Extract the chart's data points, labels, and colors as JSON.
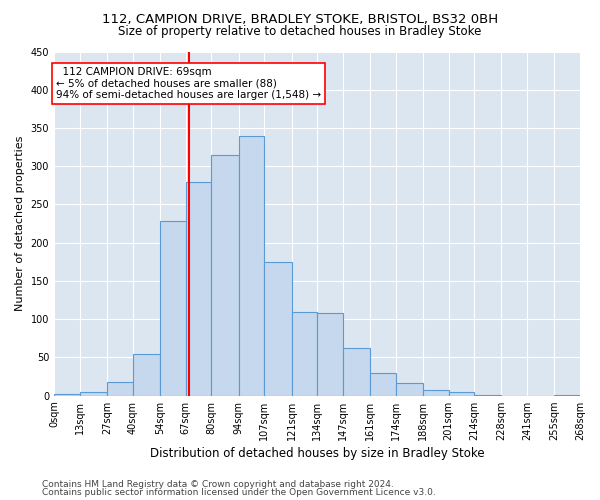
{
  "title1": "112, CAMPION DRIVE, BRADLEY STOKE, BRISTOL, BS32 0BH",
  "title2": "Size of property relative to detached houses in Bradley Stoke",
  "xlabel": "Distribution of detached houses by size in Bradley Stoke",
  "ylabel": "Number of detached properties",
  "footnote1": "Contains HM Land Registry data © Crown copyright and database right 2024.",
  "footnote2": "Contains public sector information licensed under the Open Government Licence v3.0.",
  "annotation_title": "112 CAMPION DRIVE: 69sqm",
  "annotation_line1": "← 5% of detached houses are smaller (88)",
  "annotation_line2": "94% of semi-detached houses are larger (1,548) →",
  "property_size": 69,
  "bin_edges": [
    0,
    13,
    27,
    40,
    54,
    67,
    80,
    94,
    107,
    121,
    134,
    147,
    161,
    174,
    188,
    201,
    214,
    228,
    241,
    255,
    268
  ],
  "bar_heights": [
    2,
    5,
    18,
    55,
    228,
    280,
    315,
    340,
    175,
    110,
    108,
    62,
    30,
    16,
    7,
    5,
    1,
    0,
    0,
    1
  ],
  "bar_facecolor": "#c5d8ed",
  "bar_edgecolor": "#5b9bd5",
  "vline_color": "red",
  "annotation_box_edgecolor": "red",
  "background_color": "#dce6f1",
  "ylim": [
    0,
    450
  ],
  "yticks": [
    0,
    50,
    100,
    150,
    200,
    250,
    300,
    350,
    400,
    450
  ],
  "grid_color": "#ffffff",
  "title1_fontsize": 9.5,
  "title2_fontsize": 8.5,
  "xlabel_fontsize": 8.5,
  "ylabel_fontsize": 8,
  "tick_labelsize": 7,
  "annotation_fontsize": 7.5,
  "footnote_fontsize": 6.5
}
